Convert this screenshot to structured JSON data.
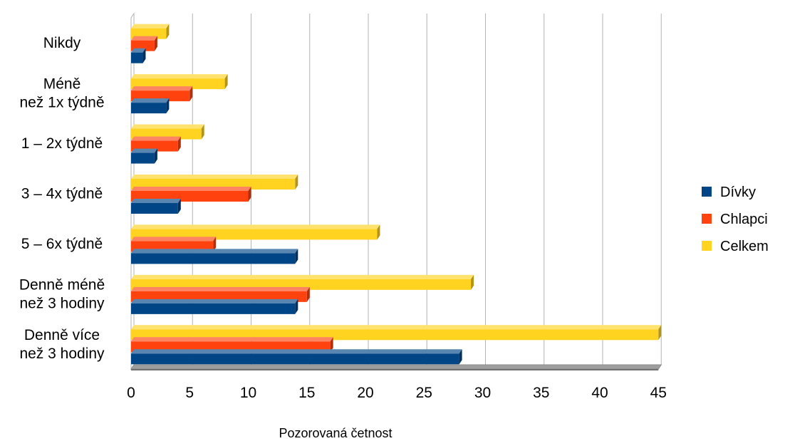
{
  "chart_data": {
    "type": "bar",
    "orientation": "horizontal",
    "categories": [
      "Nikdy",
      "Méně\nnež 1x týdně",
      "1 – 2x týdně",
      "3 – 4x týdně",
      "5 – 6x týdně",
      "Denně méně\nnež 3 hodiny",
      "Denně více\nnež 3 hodiny"
    ],
    "series": [
      {
        "name": "Dívky",
        "color": "#004586",
        "values": [
          1,
          3,
          2,
          4,
          14,
          14,
          28
        ]
      },
      {
        "name": "Chlapci",
        "color": "#ff420e",
        "values": [
          2,
          5,
          4,
          10,
          7,
          15,
          17
        ]
      },
      {
        "name": "Celkem",
        "color": "#ffd320",
        "values": [
          3,
          8,
          6,
          14,
          21,
          29,
          45
        ]
      }
    ],
    "xlabel": "Pozorovaná četnost",
    "ylabel": "",
    "xlim": [
      0,
      45
    ],
    "xticks": [
      0,
      5,
      10,
      15,
      20,
      25,
      30,
      35,
      40,
      45
    ],
    "grid": "vertical",
    "legend": "right",
    "style": "3d"
  }
}
